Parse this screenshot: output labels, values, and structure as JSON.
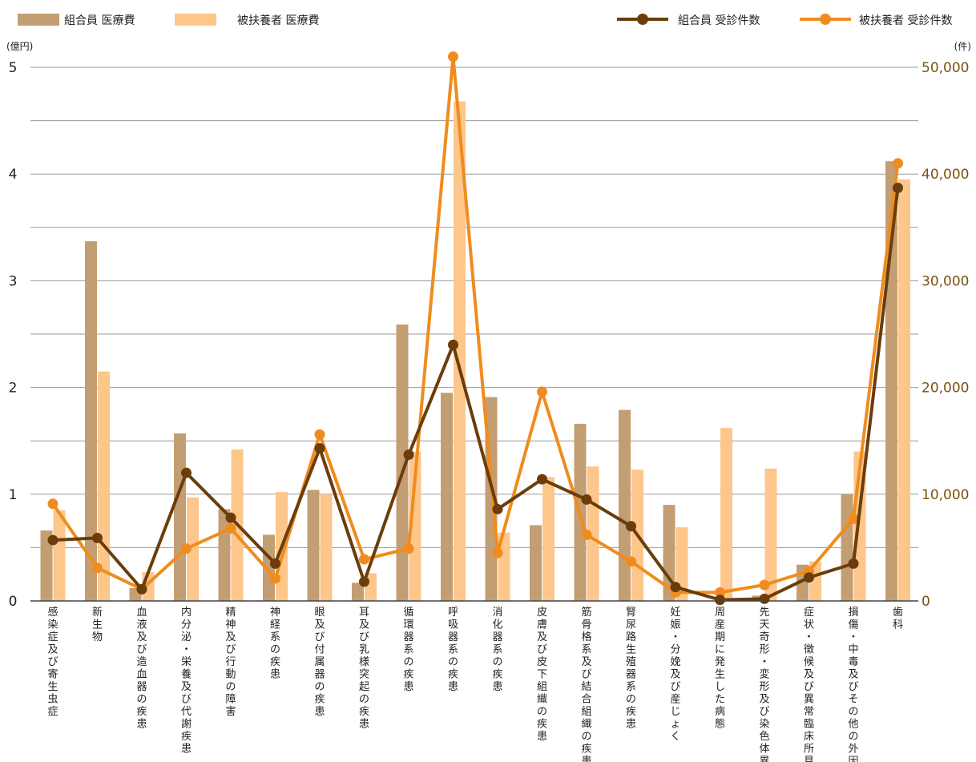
{
  "chart_data": {
    "type": "bar",
    "categories": [
      "感染症及び寄生虫症",
      "新生物",
      "血液及び造血器の疾患",
      "内分泌・栄養及び代謝疾患",
      "精神及び行動の障害",
      "神経系の疾患",
      "眼及び付属器の疾患",
      "耳及び乳様突起の疾患",
      "循環器系の疾患",
      "呼吸器系の疾患",
      "消化器系の疾患",
      "皮膚及び皮下組織の疾患",
      "筋骨格系及び結合組織の疾患",
      "腎尿路生殖器系の疾患",
      "妊娠・分娩及び産じょく",
      "周産期に発生した病態",
      "先天奇形・変形及び染色体異常",
      "症状・徴候及び異常臨床所見",
      "損傷・中毒及びその他の外因",
      "歯科"
    ],
    "y_left": {
      "unit": "(億円)",
      "ylim": [
        0,
        5
      ],
      "ticks": [
        "0",
        "1",
        "2",
        "3",
        "4",
        "5"
      ]
    },
    "y_right": {
      "unit": "(件)",
      "ylim": [
        0,
        50000
      ],
      "ticks": [
        "0",
        "10,000",
        "20,000",
        "30,000",
        "40,000",
        "50,000"
      ]
    },
    "grid": true,
    "legend_position": "top",
    "bar_series": [
      {
        "name": "組合員 医療費",
        "color": "#c49e73",
        "axis": "left",
        "values": [
          0.66,
          3.37,
          0.12,
          1.57,
          0.86,
          0.62,
          1.04,
          0.17,
          2.59,
          1.95,
          1.91,
          0.71,
          1.66,
          1.79,
          0.9,
          0.0,
          0.05,
          0.34,
          1.0,
          4.12
        ]
      },
      {
        "name": "被扶養者 医療費",
        "color": "#fdc68b",
        "axis": "left",
        "values": [
          0.85,
          2.15,
          0.27,
          0.97,
          1.42,
          1.02,
          1.0,
          0.26,
          1.4,
          4.68,
          0.64,
          1.16,
          1.26,
          1.23,
          0.69,
          1.62,
          1.24,
          0.37,
          1.4,
          3.95
        ]
      }
    ],
    "line_series": [
      {
        "name": "組合員 受診件数",
        "color": "#6b3d0a",
        "axis": "right",
        "values": [
          5700,
          5900,
          1100,
          12000,
          7800,
          3500,
          14300,
          1800,
          13700,
          24000,
          8600,
          11400,
          9500,
          7000,
          1300,
          100,
          200,
          2200,
          3500,
          38700
        ]
      },
      {
        "name": "被扶養者 受診件数",
        "color": "#f08c1e",
        "axis": "right",
        "values": [
          9100,
          3100,
          1100,
          4900,
          6800,
          2100,
          15600,
          3900,
          4900,
          51000,
          4500,
          19600,
          6200,
          3700,
          800,
          800,
          1500,
          2800,
          7700,
          41000
        ]
      }
    ]
  }
}
